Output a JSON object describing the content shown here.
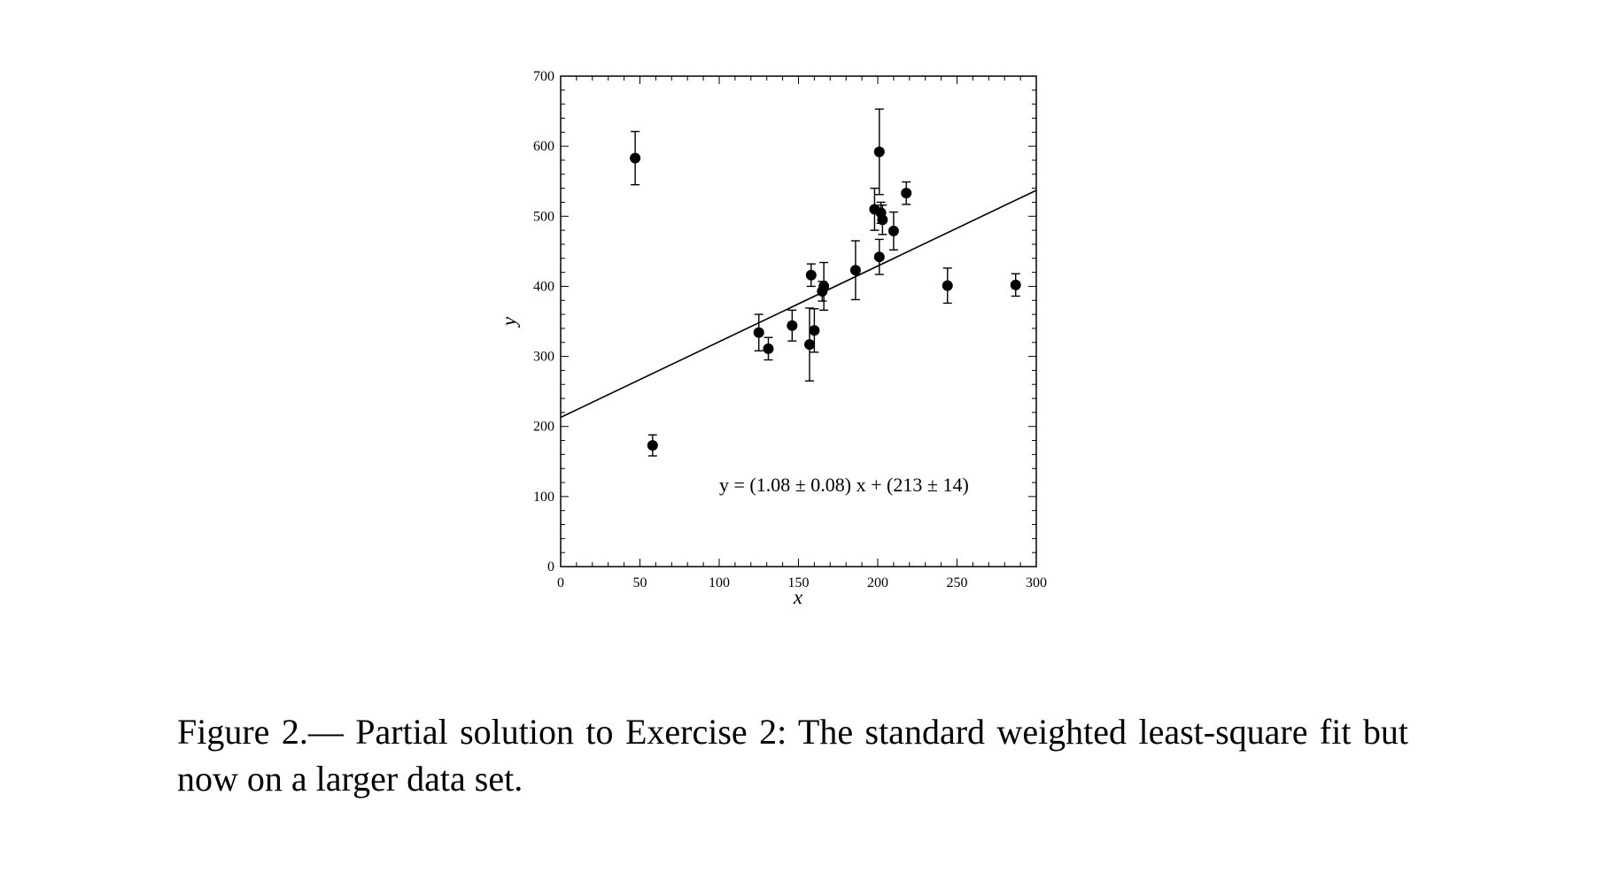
{
  "chart_data": {
    "type": "scatter",
    "title": "",
    "xlabel": "x",
    "ylabel": "y",
    "xlim": [
      0,
      300
    ],
    "ylim": [
      0,
      700
    ],
    "x_ticks": [
      0,
      50,
      100,
      150,
      200,
      250,
      300
    ],
    "y_ticks": [
      0,
      100,
      200,
      300,
      400,
      500,
      600,
      700
    ],
    "grid": false,
    "marker_color": "#000000",
    "points": [
      {
        "x": 47,
        "y": 583,
        "err": 38
      },
      {
        "x": 58,
        "y": 173,
        "err": 15
      },
      {
        "x": 125,
        "y": 334,
        "err": 26
      },
      {
        "x": 131,
        "y": 311,
        "err": 16
      },
      {
        "x": 146,
        "y": 344,
        "err": 22
      },
      {
        "x": 157,
        "y": 317,
        "err": 52
      },
      {
        "x": 158,
        "y": 416,
        "err": 16
      },
      {
        "x": 160,
        "y": 337,
        "err": 31
      },
      {
        "x": 165,
        "y": 393,
        "err": 14
      },
      {
        "x": 166,
        "y": 400,
        "err": 34
      },
      {
        "x": 186,
        "y": 423,
        "err": 42
      },
      {
        "x": 198,
        "y": 510,
        "err": 30
      },
      {
        "x": 201,
        "y": 442,
        "err": 25
      },
      {
        "x": 201,
        "y": 592,
        "err": 61
      },
      {
        "x": 202,
        "y": 505,
        "err": 15
      },
      {
        "x": 203,
        "y": 495,
        "err": 21
      },
      {
        "x": 210,
        "y": 479,
        "err": 27
      },
      {
        "x": 218,
        "y": 533,
        "err": 16
      },
      {
        "x": 244,
        "y": 401,
        "err": 25
      },
      {
        "x": 287,
        "y": 402,
        "err": 16
      }
    ],
    "fit": {
      "slope": 1.08,
      "intercept": 213
    },
    "annotation": "y = (1.08 ± 0.08) x + (213 ± 14)"
  },
  "caption": "Figure 2.— Partial solution to Exercise 2:  The standard weighted least-square fit but now on a larger data set."
}
